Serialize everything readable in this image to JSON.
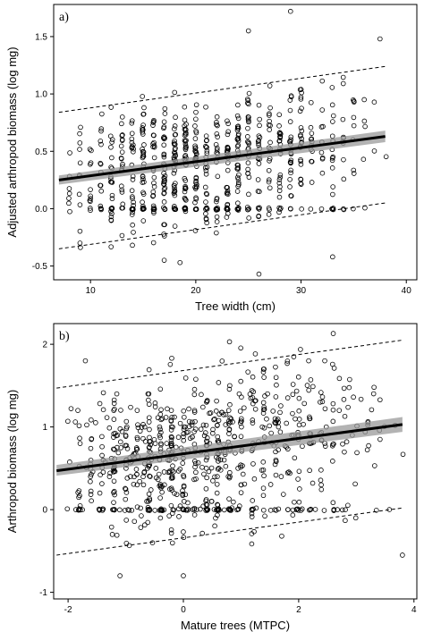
{
  "chart_data": [
    {
      "type": "scatter",
      "panel_label": "a)",
      "xlabel": "Tree width (cm)",
      "ylabel": "Adjusted arthropod biomass (log mg)",
      "xlim": [
        6.5,
        41
      ],
      "ylim": [
        -0.62,
        1.78
      ],
      "xticks": [
        10,
        20,
        30,
        40
      ],
      "xtick_labels": [
        "10",
        "20",
        "30",
        "40"
      ],
      "yticks": [
        -0.5,
        0.0,
        0.5,
        1.0,
        1.5
      ],
      "ytick_labels": [
        "-0.5",
        "0.0",
        "0.5",
        "1.0",
        "1.5"
      ],
      "grid": false,
      "fit_line": {
        "x": [
          7,
          38
        ],
        "y": [
          0.25,
          0.63
        ]
      },
      "confidence_band": {
        "x": [
          7,
          38
        ],
        "upper": [
          0.29,
          0.68
        ],
        "lower": [
          0.21,
          0.58
        ]
      },
      "prediction_bounds": {
        "x": [
          7,
          38
        ],
        "upper": [
          0.84,
          1.24
        ],
        "lower": [
          -0.35,
          0.05
        ]
      },
      "points": {
        "n": 700,
        "x_range": [
          7,
          38
        ],
        "x_mode": 18,
        "zero_fraction": 0.13,
        "residual_sd": 0.27,
        "outliers": [
          [
            29,
            1.72
          ],
          [
            25,
            1.55
          ],
          [
            37.5,
            1.48
          ],
          [
            26,
            -0.57
          ],
          [
            17,
            -0.45
          ],
          [
            33,
            -0.42
          ],
          [
            18.5,
            -0.47
          ],
          [
            9,
            -0.3
          ]
        ]
      }
    },
    {
      "type": "scatter",
      "panel_label": "b)",
      "xlabel": "Mature trees (MTPC)",
      "ylabel": "Arthropod biomass (log mg)",
      "xlim": [
        -2.25,
        4.05
      ],
      "ylim": [
        -1.08,
        2.25
      ],
      "xticks": [
        -2,
        0,
        2,
        4
      ],
      "xtick_labels": [
        "-2",
        "0",
        "2",
        "4"
      ],
      "yticks": [
        -1,
        0,
        1,
        2
      ],
      "ytick_labels": [
        "-1",
        "0",
        "1",
        "2"
      ],
      "grid": false,
      "fit_line": {
        "x": [
          -2.2,
          3.8
        ],
        "y": [
          0.47,
          1.03
        ]
      },
      "confidence_band": {
        "x": [
          -2.2,
          3.8
        ],
        "upper": [
          0.54,
          1.12
        ],
        "lower": [
          0.41,
          0.94
        ]
      },
      "prediction_bounds": {
        "x": [
          -2.2,
          3.8
        ],
        "upper": [
          1.47,
          2.05
        ],
        "lower": [
          -0.55,
          0.02
        ]
      },
      "points": {
        "n": 780,
        "x_range": [
          -2.2,
          3.8
        ],
        "x_mode": -0.5,
        "zero_fraction": 0.14,
        "residual_sd": 0.45,
        "outliers": [
          [
            -1.1,
            -0.8
          ],
          [
            0,
            -0.8
          ],
          [
            3.8,
            -0.55
          ],
          [
            0.8,
            2.03
          ],
          [
            2.6,
            2.13
          ],
          [
            -1.7,
            1.8
          ]
        ]
      }
    }
  ]
}
